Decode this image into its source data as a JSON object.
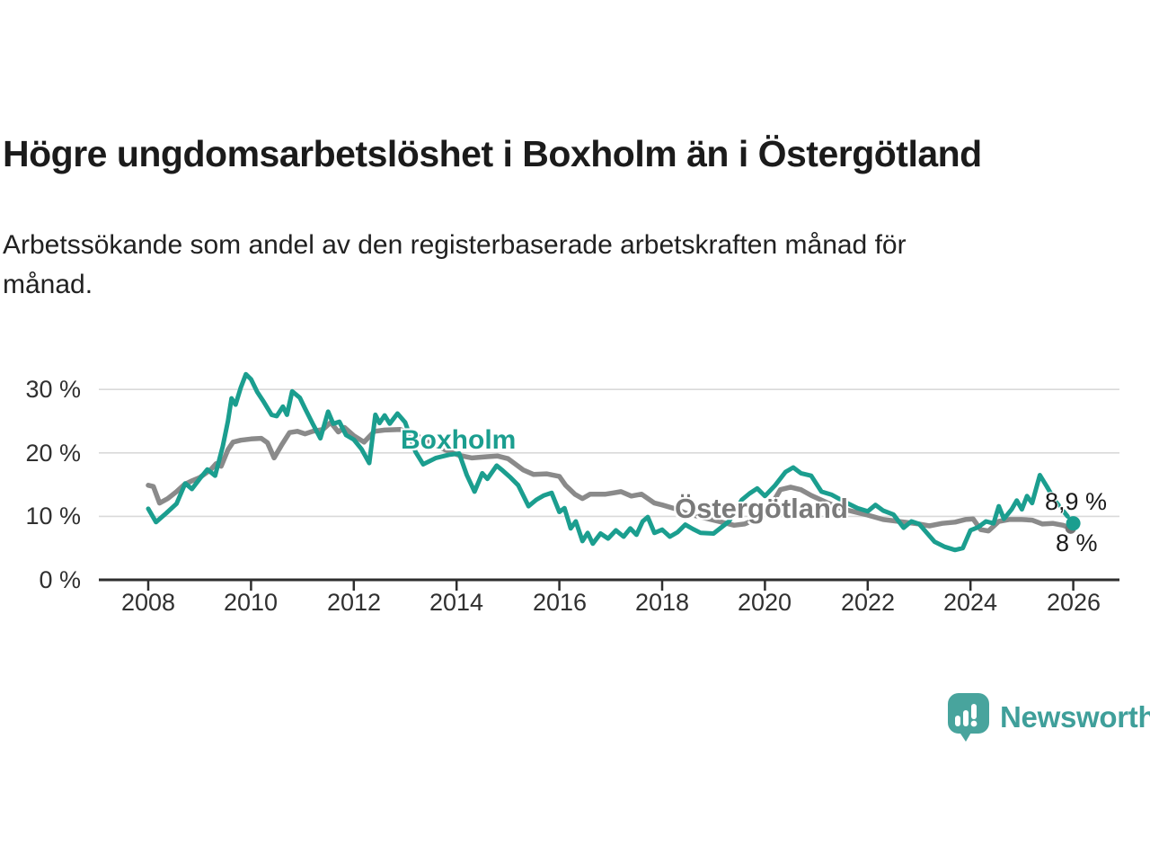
{
  "header": {
    "title": "Högre ungdomsarbetslöshet i Boxholm än i Östergötland",
    "subtitle_lines": [
      "Arbetssökande som andel av den registerbaserade arbetskraften månad för",
      "månad."
    ]
  },
  "chart_data": {
    "type": "line",
    "title": "Högre ungdomsarbetslöshet i Boxholm än i Östergötland",
    "subtitle": "Arbetssökande som andel av den registerbaserade arbetskraften månad för månad.",
    "xlabel": "",
    "ylabel": "",
    "x_unit": "year",
    "y_unit": "%",
    "xlim": [
      2007.05,
      2026.9
    ],
    "ylim": [
      0,
      33.5
    ],
    "grid": {
      "show": true,
      "color": "#d9d9d9"
    },
    "axis_color": "#2e2e2e",
    "tick_label_color": "#303030",
    "x_tick_years": [
      2008,
      2010,
      2012,
      2014,
      2016,
      2018,
      2020,
      2022,
      2024,
      2026
    ],
    "x_tick_labels": [
      "2008",
      "2010",
      "2012",
      "2014",
      "2016",
      "2018",
      "2020",
      "2022",
      "2024",
      "2026"
    ],
    "y_tick_values": [
      0,
      10,
      20,
      30
    ],
    "y_tick_labels": [
      "0 %",
      "10 %",
      "20 %",
      "30 %"
    ],
    "legend_position": "inline-labels",
    "series": [
      {
        "name": "Östergötland",
        "label": "Östergötland",
        "color": "#8a8a8a",
        "label_color": "#7a7a7a",
        "line_width": 5.5,
        "end_dot": {
          "year": 2025.95,
          "value": 8.1,
          "radius": 6,
          "color": "#757575"
        },
        "end_label": "8 %",
        "points": [
          [
            2008.0,
            14.9
          ],
          [
            2008.1,
            14.7
          ],
          [
            2008.22,
            12.1
          ],
          [
            2008.38,
            12.8
          ],
          [
            2008.55,
            13.9
          ],
          [
            2008.7,
            15.0
          ],
          [
            2008.85,
            15.6
          ],
          [
            2009.0,
            16.1
          ],
          [
            2009.1,
            16.7
          ],
          [
            2009.22,
            17.4
          ],
          [
            2009.32,
            18.3
          ],
          [
            2009.42,
            17.9
          ],
          [
            2009.55,
            20.5
          ],
          [
            2009.65,
            21.7
          ],
          [
            2009.8,
            22.0
          ],
          [
            2010.0,
            22.2
          ],
          [
            2010.2,
            22.3
          ],
          [
            2010.32,
            21.6
          ],
          [
            2010.45,
            19.2
          ],
          [
            2010.6,
            21.3
          ],
          [
            2010.75,
            23.2
          ],
          [
            2010.9,
            23.4
          ],
          [
            2011.05,
            23.0
          ],
          [
            2011.2,
            23.4
          ],
          [
            2011.4,
            23.7
          ],
          [
            2011.55,
            24.8
          ],
          [
            2011.7,
            23.3
          ],
          [
            2011.82,
            24.0
          ],
          [
            2012.0,
            22.7
          ],
          [
            2012.2,
            21.7
          ],
          [
            2012.4,
            23.4
          ],
          [
            2012.6,
            23.6
          ],
          [
            2012.9,
            23.7
          ],
          [
            2013.2,
            22.8
          ],
          [
            2013.5,
            21.6
          ],
          [
            2013.8,
            20.4
          ],
          [
            2014.05,
            19.6
          ],
          [
            2014.3,
            19.2
          ],
          [
            2014.6,
            19.4
          ],
          [
            2014.8,
            19.5
          ],
          [
            2015.0,
            19.1
          ],
          [
            2015.3,
            17.3
          ],
          [
            2015.5,
            16.6
          ],
          [
            2015.75,
            16.7
          ],
          [
            2016.0,
            16.3
          ],
          [
            2016.12,
            14.9
          ],
          [
            2016.3,
            13.5
          ],
          [
            2016.45,
            12.8
          ],
          [
            2016.6,
            13.5
          ],
          [
            2016.9,
            13.5
          ],
          [
            2017.05,
            13.7
          ],
          [
            2017.2,
            13.9
          ],
          [
            2017.4,
            13.2
          ],
          [
            2017.6,
            13.5
          ],
          [
            2017.85,
            12.1
          ],
          [
            2018.0,
            11.8
          ],
          [
            2018.25,
            11.2
          ],
          [
            2018.5,
            10.4
          ],
          [
            2018.8,
            9.8
          ],
          [
            2019.1,
            9.2
          ],
          [
            2019.4,
            8.6
          ],
          [
            2019.6,
            8.8
          ],
          [
            2019.85,
            9.6
          ],
          [
            2020.05,
            10.8
          ],
          [
            2020.3,
            14.2
          ],
          [
            2020.5,
            14.6
          ],
          [
            2020.7,
            14.2
          ],
          [
            2020.9,
            13.3
          ],
          [
            2021.2,
            12.2
          ],
          [
            2021.5,
            11.2
          ],
          [
            2021.8,
            10.6
          ],
          [
            2022.0,
            10.2
          ],
          [
            2022.3,
            9.5
          ],
          [
            2022.6,
            9.2
          ],
          [
            2023.0,
            8.8
          ],
          [
            2023.2,
            8.5
          ],
          [
            2023.45,
            8.9
          ],
          [
            2023.7,
            9.1
          ],
          [
            2023.9,
            9.5
          ],
          [
            2024.05,
            9.6
          ],
          [
            2024.2,
            7.9
          ],
          [
            2024.35,
            7.7
          ],
          [
            2024.55,
            9.2
          ],
          [
            2024.75,
            9.5
          ],
          [
            2025.0,
            9.5
          ],
          [
            2025.2,
            9.4
          ],
          [
            2025.4,
            8.8
          ],
          [
            2025.6,
            8.9
          ],
          [
            2025.8,
            8.6
          ],
          [
            2026.0,
            8.0
          ]
        ]
      },
      {
        "name": "Boxholm",
        "label": "Boxholm",
        "color": "#1b9e8f",
        "label_color": "#1b9e8f",
        "line_width": 5,
        "dashed_from": 2025.5,
        "end_dot": {
          "year": 2026.0,
          "value": 8.9,
          "radius": 8,
          "color": "#1b9e8f"
        },
        "end_label": "8,9 %",
        "points": [
          [
            2008.0,
            11.2
          ],
          [
            2008.15,
            9.1
          ],
          [
            2008.35,
            10.5
          ],
          [
            2008.55,
            12.0
          ],
          [
            2008.72,
            15.2
          ],
          [
            2008.85,
            14.3
          ],
          [
            2009.0,
            15.9
          ],
          [
            2009.15,
            17.4
          ],
          [
            2009.3,
            16.4
          ],
          [
            2009.45,
            21.0
          ],
          [
            2009.55,
            25.0
          ],
          [
            2009.62,
            28.6
          ],
          [
            2009.7,
            27.6
          ],
          [
            2009.8,
            30.3
          ],
          [
            2009.9,
            32.4
          ],
          [
            2010.0,
            31.6
          ],
          [
            2010.12,
            29.6
          ],
          [
            2010.25,
            28.0
          ],
          [
            2010.4,
            26.0
          ],
          [
            2010.5,
            25.8
          ],
          [
            2010.62,
            27.3
          ],
          [
            2010.7,
            26.0
          ],
          [
            2010.8,
            29.7
          ],
          [
            2010.95,
            28.7
          ],
          [
            2011.05,
            27.0
          ],
          [
            2011.2,
            24.6
          ],
          [
            2011.35,
            22.3
          ],
          [
            2011.5,
            26.5
          ],
          [
            2011.6,
            24.6
          ],
          [
            2011.72,
            24.9
          ],
          [
            2011.85,
            22.8
          ],
          [
            2012.0,
            22.1
          ],
          [
            2012.15,
            20.6
          ],
          [
            2012.3,
            18.4
          ],
          [
            2012.42,
            26.0
          ],
          [
            2012.5,
            24.7
          ],
          [
            2012.6,
            25.9
          ],
          [
            2012.7,
            24.6
          ],
          [
            2012.85,
            26.2
          ],
          [
            2013.0,
            24.8
          ],
          [
            2013.2,
            20.2
          ],
          [
            2013.35,
            18.2
          ],
          [
            2013.6,
            19.2
          ],
          [
            2013.85,
            19.7
          ],
          [
            2014.05,
            19.9
          ],
          [
            2014.2,
            16.5
          ],
          [
            2014.35,
            13.9
          ],
          [
            2014.5,
            16.8
          ],
          [
            2014.6,
            15.9
          ],
          [
            2014.78,
            18.0
          ],
          [
            2014.9,
            17.2
          ],
          [
            2015.05,
            16.1
          ],
          [
            2015.2,
            14.9
          ],
          [
            2015.4,
            11.6
          ],
          [
            2015.55,
            12.6
          ],
          [
            2015.7,
            13.3
          ],
          [
            2015.85,
            13.7
          ],
          [
            2016.0,
            10.7
          ],
          [
            2016.1,
            11.3
          ],
          [
            2016.22,
            8.1
          ],
          [
            2016.32,
            9.2
          ],
          [
            2016.45,
            6.1
          ],
          [
            2016.55,
            7.4
          ],
          [
            2016.65,
            5.7
          ],
          [
            2016.8,
            7.3
          ],
          [
            2016.95,
            6.5
          ],
          [
            2017.1,
            7.8
          ],
          [
            2017.25,
            6.8
          ],
          [
            2017.38,
            8.1
          ],
          [
            2017.5,
            7.1
          ],
          [
            2017.62,
            9.2
          ],
          [
            2017.72,
            9.9
          ],
          [
            2017.85,
            7.4
          ],
          [
            2018.0,
            7.9
          ],
          [
            2018.15,
            6.8
          ],
          [
            2018.3,
            7.5
          ],
          [
            2018.45,
            8.7
          ],
          [
            2018.6,
            8.0
          ],
          [
            2018.75,
            7.4
          ],
          [
            2019.0,
            7.3
          ],
          [
            2019.3,
            9.2
          ],
          [
            2019.55,
            12.6
          ],
          [
            2019.7,
            13.6
          ],
          [
            2019.85,
            14.4
          ],
          [
            2020.0,
            13.2
          ],
          [
            2020.2,
            14.9
          ],
          [
            2020.4,
            17.0
          ],
          [
            2020.55,
            17.7
          ],
          [
            2020.7,
            16.8
          ],
          [
            2020.9,
            16.4
          ],
          [
            2021.1,
            13.9
          ],
          [
            2021.3,
            13.4
          ],
          [
            2021.55,
            12.3
          ],
          [
            2021.8,
            11.3
          ],
          [
            2022.0,
            10.8
          ],
          [
            2022.15,
            11.8
          ],
          [
            2022.3,
            10.9
          ],
          [
            2022.5,
            10.3
          ],
          [
            2022.7,
            8.2
          ],
          [
            2022.85,
            9.2
          ],
          [
            2023.0,
            8.8
          ],
          [
            2023.3,
            6.0
          ],
          [
            2023.5,
            5.2
          ],
          [
            2023.7,
            4.7
          ],
          [
            2023.85,
            5.0
          ],
          [
            2024.0,
            7.8
          ],
          [
            2024.15,
            8.3
          ],
          [
            2024.3,
            9.2
          ],
          [
            2024.45,
            8.9
          ],
          [
            2024.55,
            11.6
          ],
          [
            2024.65,
            9.6
          ],
          [
            2024.8,
            11.1
          ],
          [
            2024.9,
            12.5
          ],
          [
            2025.0,
            11.1
          ],
          [
            2025.1,
            13.2
          ],
          [
            2025.2,
            12.1
          ],
          [
            2025.35,
            16.5
          ],
          [
            2025.5,
            14.5
          ],
          [
            2025.65,
            12.4
          ],
          [
            2025.85,
            10.4
          ],
          [
            2026.0,
            8.9
          ]
        ]
      }
    ]
  },
  "branding": {
    "logo_text": "Newsworthy",
    "logo_color": "#3f9f9a",
    "logo_icon": "bar-chart-speech-bubble",
    "icon_background": "#48a49d"
  }
}
